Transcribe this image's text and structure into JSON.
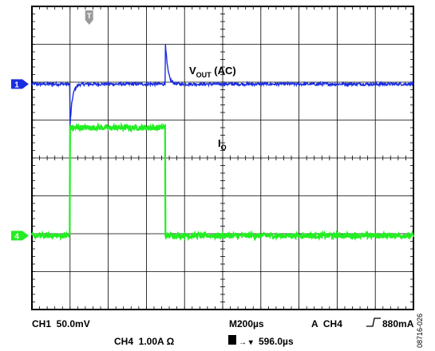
{
  "chart_data": {
    "type": "line",
    "title": "",
    "xlabel": "",
    "ylabel": "",
    "grid": true,
    "divisions": {
      "x": 10,
      "y": 8
    },
    "x_unit": "µs",
    "x_range": [
      0,
      2000
    ],
    "channels": [
      {
        "id": "1",
        "name": "VOUT (AC)",
        "label_main": "V",
        "label_sub": "OUT",
        "label_suffix": " (AC)",
        "color": "#1a2ee0",
        "scale": "50.0mV",
        "ground_div": 5.95,
        "baseline_div": 5.95,
        "units_per_div": 50,
        "unit": "mV",
        "noise_div": 0.04,
        "events": [
          {
            "t_us": 200,
            "peak_div": -1.1,
            "decay_us": 12
          },
          {
            "t_us": 700,
            "peak_div": 1.1,
            "decay_us": 12
          }
        ]
      },
      {
        "id": "4",
        "name": "IO",
        "label_main": "I",
        "label_sub": "O",
        "label_suffix": "",
        "color": "#22ee22",
        "scale": "1.00A",
        "ground_div": 1.95,
        "units_per_div": 1,
        "unit": "A",
        "noise_div": 0.07,
        "low_div": 1.95,
        "high_div": 4.8,
        "step_on_us": 200,
        "step_off_us": 700
      }
    ],
    "trigger_marker": "T",
    "trigger_position_us": 300
  },
  "readout": {
    "ch1": "CH1  50.0mV",
    "ch4": "CH4  1.00A Ω",
    "timebase": "M200µs",
    "trigger": "A  CH4  ⎍ 880mA",
    "trigger_prefix": "A  CH4",
    "trigger_level": "880mA",
    "position": "596.0µs",
    "position_arrows": "→ ▾",
    "position_icon": "T"
  },
  "figure_id": "08716-026"
}
